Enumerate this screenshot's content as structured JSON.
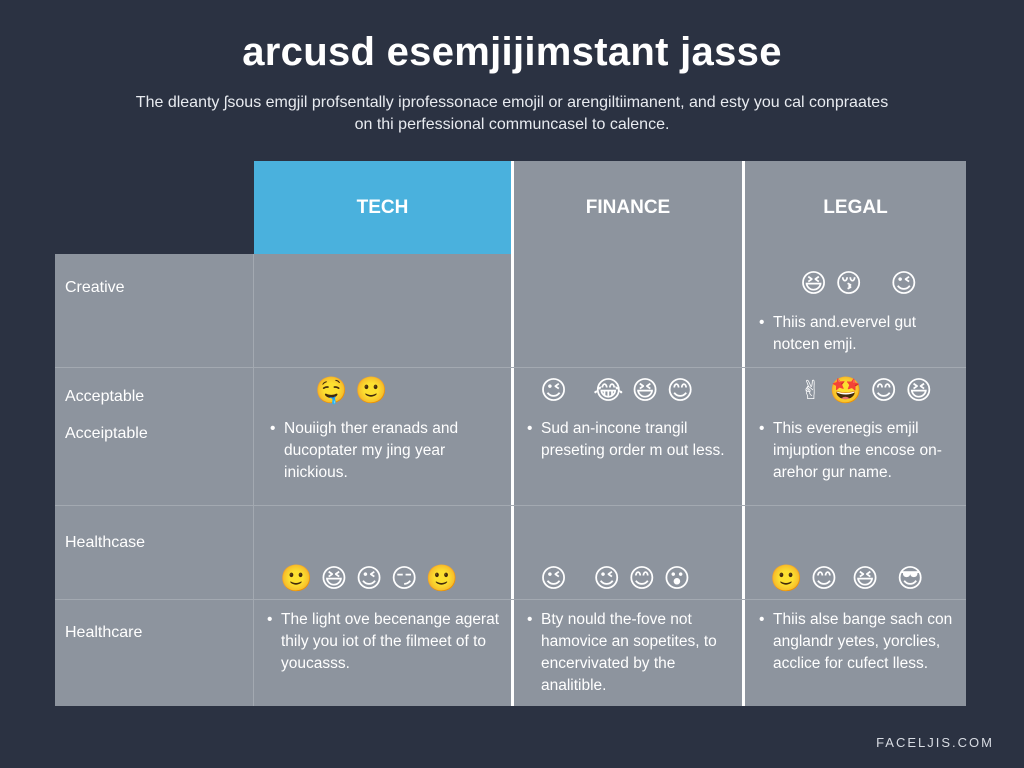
{
  "title": "arcusd esemjijimstant jasse",
  "subtitle": "The dleanty ʃsous emgjil profsentally iprofessonace emojil or arengiltiimanent, and esty you cal conpraates on thi perfessional communcasel to calence.",
  "columns": [
    "TECH",
    "FINANCE",
    "LEGAL"
  ],
  "rows": [
    {
      "labels": [
        "Creative"
      ],
      "cells": [
        {
          "emojis": [],
          "note": ""
        },
        {
          "emojis": [],
          "note": ""
        },
        {
          "emojis": [
            "😆",
            "😚",
            "😉"
          ],
          "note": "Thiis and.evervel gut notcen emji."
        }
      ]
    },
    {
      "labels": [
        "Acceptable",
        "Acceiptable"
      ],
      "cells": [
        {
          "emojis": [
            "🤤",
            "🙂"
          ],
          "note": "Nouiigh ther eranads and ducoptater my jing year inickious."
        },
        {
          "emojis": [
            "😉",
            "😂",
            "😆",
            "😊"
          ],
          "note": "Sud an-incone trangil preseting order m out less."
        },
        {
          "emojis": [
            "✌",
            "🤩",
            "😊",
            "😆"
          ],
          "note": "This everenegis emjil imjuption the encose on-arehor gur name."
        }
      ]
    },
    {
      "labels": [
        "Healthcase",
        "Healthcare"
      ],
      "cells": [
        {
          "emojis": [
            "🙂",
            "😆",
            "😉",
            "😏",
            "🙂"
          ],
          "note": "The light ove becenange agerat thily you iot of the filmeet of to youcasss."
        },
        {
          "emojis": [
            "😉",
            "😉",
            "😊",
            "😮"
          ],
          "note": "Bty nould the-fove not hamovice an sopetites, to encervivated by the analitible."
        },
        {
          "emojis": [
            "🙂",
            "😊",
            "😆",
            "😎"
          ],
          "note": "Thiis alse bange sach con anglandr yetes, yorclies, acclice for cufect lless."
        }
      ]
    }
  ],
  "watermark": "FACELJIS.COM",
  "colors": {
    "background": "#2b3242",
    "tech_header": "#4ab1dd",
    "cell": "#8d949e"
  }
}
